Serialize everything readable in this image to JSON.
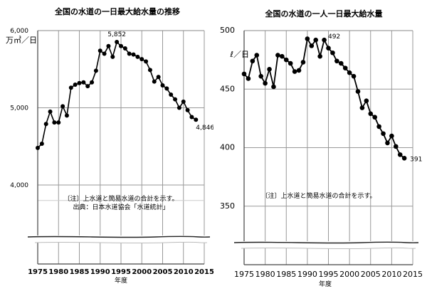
{
  "chart_data": [
    {
      "type": "line",
      "title": "全国の水道の一日最大給水量の推移",
      "ylabel": "万㎥／日",
      "xlabel": "年度",
      "ylim": [
        3600,
        6000
      ],
      "yticks": [
        "6,000",
        "5,000",
        "4,000"
      ],
      "xticks": [
        "1975",
        "1980",
        "1985",
        "1990",
        "1995",
        "2000",
        "2005",
        "2010",
        "2015"
      ],
      "xlim": [
        1975,
        2015
      ],
      "grid": true,
      "axis_break": true,
      "annotations": [
        {
          "x": 1994,
          "y": 5852,
          "text": "5,852"
        },
        {
          "x": 2013,
          "y": 4846,
          "text": "4,846"
        }
      ],
      "notes": [
        "〔注〕上水道と簡易水道の合計を示す。",
        "出典：日本水道協会「水道統計」"
      ],
      "x": [
        1975,
        1976,
        1977,
        1978,
        1979,
        1980,
        1981,
        1982,
        1983,
        1984,
        1985,
        1986,
        1987,
        1988,
        1989,
        1990,
        1991,
        1992,
        1993,
        1994,
        1995,
        1996,
        1997,
        1998,
        1999,
        2000,
        2001,
        2002,
        2003,
        2004,
        2005,
        2006,
        2007,
        2008,
        2009,
        2010,
        2011,
        2012,
        2013
      ],
      "values": [
        4480,
        4535,
        4790,
        4950,
        4810,
        4810,
        5020,
        4900,
        5260,
        5300,
        5320,
        5330,
        5280,
        5330,
        5480,
        5740,
        5700,
        5800,
        5660,
        5852,
        5800,
        5770,
        5700,
        5690,
        5660,
        5630,
        5600,
        5490,
        5340,
        5400,
        5290,
        5250,
        5170,
        5110,
        5000,
        5080,
        4970,
        4880,
        4846
      ]
    },
    {
      "type": "line",
      "title": "全国の水道の一人一日最大給水量",
      "ylabel": "ℓ／日",
      "xlabel": "年度",
      "ylim": [
        320,
        500
      ],
      "yticks": [
        "500",
        "450",
        "400",
        "350"
      ],
      "xticks": [
        "1975",
        "1980",
        "1985",
        "1990",
        "1995",
        "2000",
        "2005",
        "2010",
        "2015"
      ],
      "xlim": [
        1975,
        2015
      ],
      "grid": true,
      "axis_break": true,
      "annotations": [
        {
          "x": 1994,
          "y": 492,
          "text": "492"
        },
        {
          "x": 2013,
          "y": 391,
          "text": "391"
        }
      ],
      "notes": [
        "〔注〕上水道と簡易水道の合計を示す。"
      ],
      "x": [
        1975,
        1976,
        1977,
        1978,
        1979,
        1980,
        1981,
        1982,
        1983,
        1984,
        1985,
        1986,
        1987,
        1988,
        1989,
        1990,
        1991,
        1992,
        1993,
        1994,
        1995,
        1996,
        1997,
        1998,
        1999,
        2000,
        2001,
        2002,
        2003,
        2004,
        2005,
        2006,
        2007,
        2008,
        2009,
        2010,
        2011,
        2012,
        2013
      ],
      "values": [
        463,
        459,
        474,
        479,
        461,
        455,
        467,
        452,
        479,
        478,
        475,
        472,
        465,
        466,
        473,
        493,
        487,
        492,
        478,
        492,
        485,
        481,
        474,
        472,
        468,
        464,
        461,
        448,
        434,
        440,
        429,
        426,
        418,
        412,
        404,
        410,
        401,
        394,
        391
      ]
    }
  ],
  "left": {
    "title": "全国の水道の一日最大給水量の推移",
    "unit": "万㎥／日",
    "xlabel": "年度",
    "note1": "〔注〕上水道と簡易水道の合計を示す。",
    "note2": "出典：日本水道協会「水道統計」",
    "peak_label": "5,852",
    "end_label": "4,846"
  },
  "right": {
    "title": "全国の水道の一人一日最大給水量",
    "unit": "ℓ／日",
    "xlabel": "年度",
    "note1": "〔注〕上水道と簡易水道の合計を示す。",
    "peak_label": "492",
    "end_label": "391"
  }
}
